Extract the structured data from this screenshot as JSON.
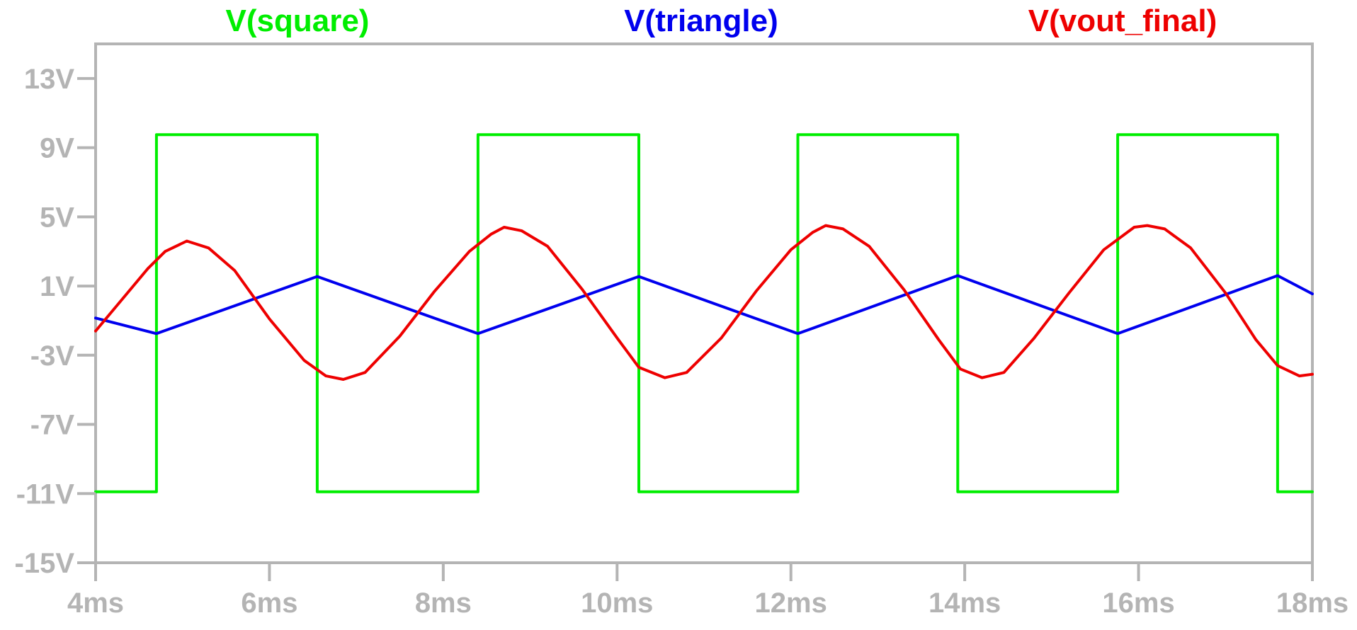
{
  "chart_data": {
    "type": "line",
    "title": "",
    "xlabel": "",
    "ylabel": "",
    "xlim": [
      4,
      18
    ],
    "ylim": [
      -15,
      15
    ],
    "x_ticks": [
      {
        "value": 4,
        "label": "4ms"
      },
      {
        "value": 6,
        "label": "6ms"
      },
      {
        "value": 8,
        "label": "8ms"
      },
      {
        "value": 10,
        "label": "10ms"
      },
      {
        "value": 12,
        "label": "12ms"
      },
      {
        "value": 14,
        "label": "14ms"
      },
      {
        "value": 16,
        "label": "16ms"
      },
      {
        "value": 18,
        "label": "18ms"
      }
    ],
    "y_ticks": [
      {
        "value": 13,
        "label": "13V"
      },
      {
        "value": 9,
        "label": "9V"
      },
      {
        "value": 5,
        "label": "5V"
      },
      {
        "value": 1,
        "label": "1V"
      },
      {
        "value": -3,
        "label": "-3V"
      },
      {
        "value": -7,
        "label": "-7V"
      },
      {
        "value": -11,
        "label": "-11V"
      },
      {
        "value": -15,
        "label": "-15V"
      }
    ],
    "grid": false,
    "legend_position": "top",
    "series": [
      {
        "name": "V(square)",
        "color": "#00ee00",
        "x": [
          4.0,
          4.7,
          4.7,
          6.55,
          6.55,
          8.4,
          8.4,
          10.25,
          10.25,
          12.08,
          12.08,
          13.92,
          13.92,
          15.76,
          15.76,
          17.6,
          17.6,
          18.0
        ],
        "y": [
          -10.9,
          -10.9,
          9.75,
          9.75,
          -10.9,
          -10.9,
          9.75,
          9.75,
          -10.9,
          -10.9,
          9.75,
          9.75,
          -10.9,
          -10.9,
          9.75,
          9.75,
          -10.9,
          -10.9
        ]
      },
      {
        "name": "V(triangle)",
        "color": "#0000ee",
        "x": [
          4.0,
          4.7,
          6.55,
          8.4,
          10.25,
          12.08,
          13.92,
          15.76,
          17.6,
          18.0
        ],
        "y": [
          -0.85,
          -1.75,
          1.55,
          -1.75,
          1.55,
          -1.75,
          1.6,
          -1.75,
          1.6,
          0.55
        ]
      },
      {
        "name": "V(vout_final)",
        "color": "#ee0000",
        "x": [
          4.0,
          4.3,
          4.6,
          4.8,
          5.05,
          5.3,
          5.6,
          6.0,
          6.4,
          6.65,
          6.85,
          7.1,
          7.5,
          7.9,
          8.3,
          8.55,
          8.7,
          8.9,
          9.2,
          9.6,
          10.0,
          10.25,
          10.55,
          10.8,
          11.2,
          11.6,
          12.0,
          12.25,
          12.4,
          12.6,
          12.9,
          13.3,
          13.7,
          13.95,
          14.2,
          14.45,
          14.8,
          15.2,
          15.6,
          15.95,
          16.1,
          16.3,
          16.6,
          17.0,
          17.35,
          17.6,
          17.85,
          18.0
        ],
        "y": [
          -1.6,
          0.2,
          2.0,
          3.0,
          3.6,
          3.2,
          1.9,
          -0.9,
          -3.3,
          -4.2,
          -4.4,
          -4.0,
          -1.9,
          0.7,
          3.0,
          4.0,
          4.4,
          4.2,
          3.3,
          0.8,
          -2.0,
          -3.7,
          -4.3,
          -4.0,
          -2.0,
          0.7,
          3.1,
          4.1,
          4.5,
          4.3,
          3.3,
          0.8,
          -2.1,
          -3.8,
          -4.3,
          -4.0,
          -2.0,
          0.6,
          3.1,
          4.4,
          4.5,
          4.3,
          3.2,
          0.6,
          -2.1,
          -3.6,
          -4.2,
          -4.1
        ]
      }
    ]
  }
}
